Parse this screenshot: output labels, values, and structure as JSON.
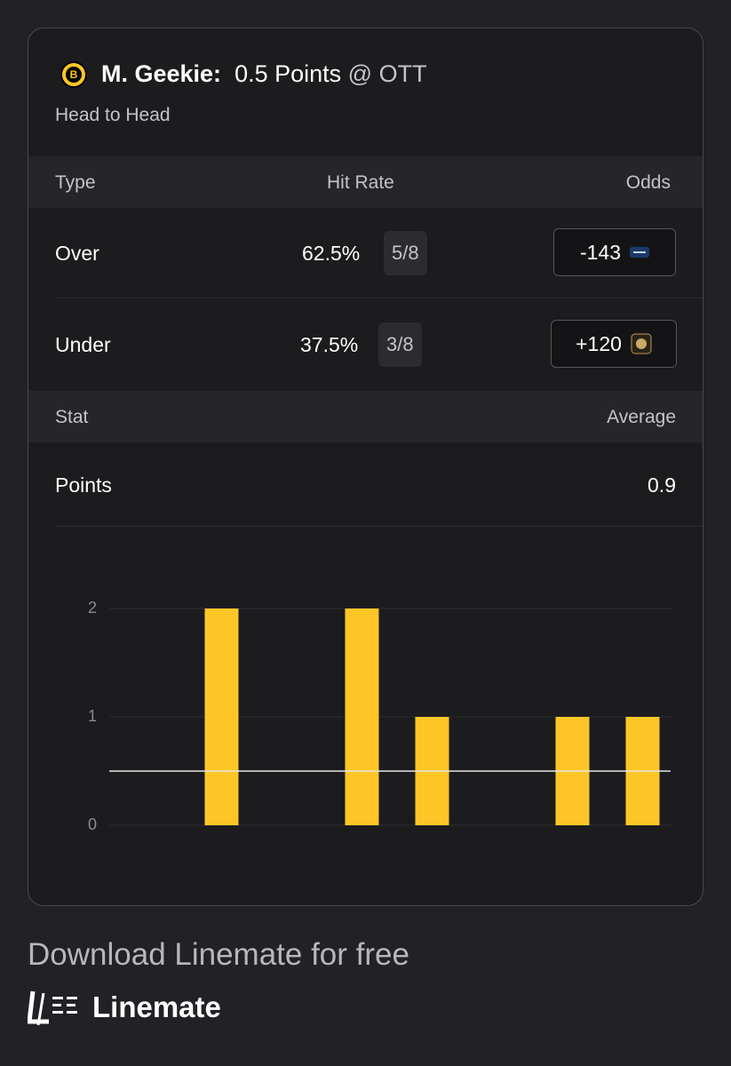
{
  "header": {
    "player": "M. Geekie:",
    "line": "0.5 Points",
    "opponent": "@ OTT",
    "subtitle": "Head to Head"
  },
  "odds_table": {
    "columns": [
      "Type",
      "Hit Rate",
      "Odds"
    ],
    "rows": [
      [
        "Over",
        "62.5%",
        "5/8",
        "-143"
      ],
      [
        "Under",
        "37.5%",
        "3/8",
        "+120"
      ]
    ]
  },
  "stat_table": {
    "columns": [
      "Stat",
      "Average"
    ],
    "rows": [
      [
        "Points",
        "0.9"
      ]
    ]
  },
  "chart_data": {
    "type": "bar",
    "values": [
      0,
      2,
      0,
      2,
      1,
      0,
      1,
      1
    ],
    "color": "#fdc626",
    "threshold": 0.5,
    "ylim": [
      0,
      2
    ],
    "yticks": [
      0,
      1,
      2
    ],
    "grid": true
  },
  "footer": {
    "cta": "Download Linemate for free",
    "brand": "Linemate"
  }
}
